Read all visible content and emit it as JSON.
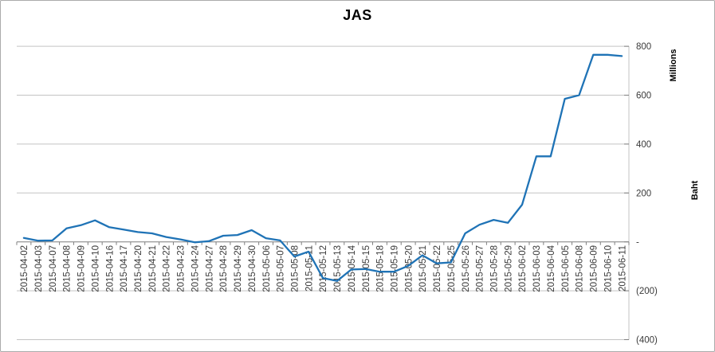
{
  "chart_data": {
    "type": "line",
    "title": "JAS",
    "ylabel": "Baht",
    "unit_label": "Millions",
    "xlabel": "",
    "legend": "none",
    "grid": true,
    "y_axis_side": "right",
    "ylim": [
      -400,
      800
    ],
    "y_ticks": [
      {
        "value": 800,
        "label": "800"
      },
      {
        "value": 600,
        "label": "600"
      },
      {
        "value": 400,
        "label": "400"
      },
      {
        "value": 200,
        "label": "200"
      },
      {
        "value": 0,
        "label": "-"
      },
      {
        "value": -200,
        "label": "(200)"
      },
      {
        "value": -400,
        "label": "(400)"
      }
    ],
    "categories": [
      "2015-04-02",
      "2015-04-03",
      "2015-04-07",
      "2015-04-08",
      "2015-04-09",
      "2015-04-10",
      "2015-04-16",
      "2015-04-17",
      "2015-04-20",
      "2015-04-21",
      "2015-04-22",
      "2015-04-23",
      "2015-04-24",
      "2015-04-27",
      "2015-04-28",
      "2015-04-29",
      "2015-04-30",
      "2015-05-06",
      "2015-05-07",
      "2015-05-08",
      "2015-05-11",
      "2015-05-12",
      "2015-05-13",
      "2015-05-14",
      "2015-05-15",
      "2015-05-18",
      "2015-05-19",
      "2015-05-20",
      "2015-05-21",
      "2015-05-22",
      "2015-05-25",
      "2015-05-26",
      "2015-05-27",
      "2015-05-28",
      "2015-05-29",
      "2015-06-02",
      "2015-06-03",
      "2015-06-04",
      "2015-06-05",
      "2015-06-08",
      "2015-06-09",
      "2015-06-10",
      "2015-06-11"
    ],
    "series": [
      {
        "name": "JAS",
        "color": "#1f73b6",
        "values": [
          16,
          5,
          6,
          55,
          68,
          88,
          60,
          50,
          40,
          35,
          20,
          10,
          -2,
          3,
          25,
          28,
          48,
          15,
          6,
          -60,
          -40,
          -148,
          -160,
          -113,
          -111,
          -122,
          -122,
          -98,
          -55,
          -88,
          -84,
          35,
          70,
          90,
          78,
          152,
          350,
          350,
          585,
          600,
          765,
          765,
          760
        ]
      }
    ],
    "colors": {
      "line": "#1f73b6",
      "gridline": "#c3c3c3",
      "axis": "#7f7f7f",
      "label_text": "#3a3a3a",
      "title_text": "#000000",
      "border": "#ababab"
    }
  }
}
